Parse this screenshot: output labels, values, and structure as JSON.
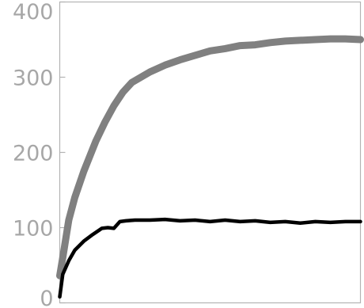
{
  "chart_data": {
    "type": "line",
    "title": "",
    "xlabel": "",
    "ylabel": "",
    "ylim": [
      0,
      400
    ],
    "xlim": [
      0,
      100
    ],
    "grid": false,
    "y_ticks": [
      {
        "value": 0,
        "label": "0"
      },
      {
        "value": 100,
        "label": "100"
      },
      {
        "value": 200,
        "label": "200"
      },
      {
        "value": 300,
        "label": "300"
      },
      {
        "value": 400,
        "label": "400"
      }
    ],
    "series": [
      {
        "color": "#808080",
        "x": [
          0,
          1,
          3,
          5,
          8,
          12,
          15,
          18,
          21,
          24,
          27,
          30,
          35,
          40,
          45,
          50,
          55,
          60,
          65,
          70,
          75,
          80,
          85,
          90,
          95,
          100
        ],
        "y": [
          36,
          60,
          110,
          140,
          175,
          215,
          240,
          262,
          280,
          293,
          300,
          307,
          316,
          323,
          329,
          335,
          338,
          342,
          343,
          346,
          348,
          349,
          350,
          351,
          351,
          350
        ]
      },
      {
        "color": "#000000",
        "x": [
          0,
          1,
          3,
          5,
          8,
          11,
          14,
          16,
          18,
          20,
          22,
          25,
          30,
          35,
          40,
          45,
          50,
          55,
          60,
          65,
          70,
          75,
          80,
          85,
          90,
          95,
          100
        ],
        "y": [
          8,
          38,
          56,
          70,
          82,
          91,
          99,
          100,
          99,
          108,
          109,
          110,
          110,
          111,
          109,
          110,
          108,
          110,
          108,
          109,
          107,
          108,
          106,
          108,
          107,
          108,
          108
        ]
      }
    ]
  }
}
